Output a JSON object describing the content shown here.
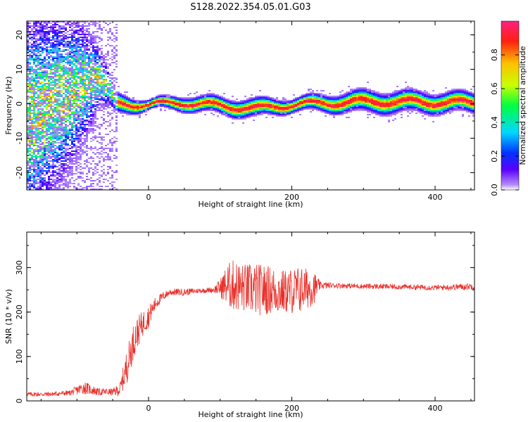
{
  "title": "S128.2022.354.05.01.G03",
  "chart_data": [
    {
      "type": "heatmap",
      "xlabel": "Height of straight line (km)",
      "ylabel": "Frequency (Hz)",
      "xlim": [
        -170,
        455
      ],
      "ylim": [
        -25,
        24
      ],
      "xticks": [
        0,
        200,
        400
      ],
      "yticks": [
        -20,
        -10,
        0,
        10,
        20
      ],
      "colorbar": {
        "label": "Normalized spectral amplitude",
        "range": [
          0,
          1
        ],
        "ticks": [
          "0.0",
          "0.2",
          "0.4",
          "0.6",
          "0.8"
        ]
      },
      "ridge": [
        {
          "x": -160,
          "freq": -3,
          "spread": 14
        },
        {
          "x": -130,
          "freq": 1,
          "spread": 12
        },
        {
          "x": -100,
          "freq": 5,
          "spread": 9
        },
        {
          "x": -70,
          "freq": 8,
          "spread": 4
        },
        {
          "x": -55,
          "freq": 4,
          "spread": 2
        },
        {
          "x": -45,
          "freq": 0,
          "spread": 1.2
        },
        {
          "x": 0,
          "freq": 0,
          "spread": 0.6
        },
        {
          "x": 50,
          "freq": 0.5,
          "spread": 0.9
        },
        {
          "x": 100,
          "freq": -0.5,
          "spread": 1.0
        },
        {
          "x": 150,
          "freq": -1.2,
          "spread": 1.1
        },
        {
          "x": 200,
          "freq": 0,
          "spread": 0.8
        },
        {
          "x": 300,
          "freq": 0.8,
          "spread": 1.3
        },
        {
          "x": 455,
          "freq": 0.5,
          "spread": 1.2
        }
      ]
    },
    {
      "type": "line",
      "xlabel": "Height of straight line (km)",
      "ylabel": "SNR (10 * v/v)",
      "xlim": [
        -170,
        455
      ],
      "ylim": [
        0,
        380
      ],
      "xticks": [
        0,
        200,
        400
      ],
      "yticks": [
        0,
        100,
        200,
        300
      ],
      "series": [
        {
          "color": "#e8302a",
          "x": [
            -170,
            -140,
            -110,
            -90,
            -70,
            -50,
            -40,
            -30,
            -20,
            -10,
            0,
            10,
            20,
            30,
            50,
            70,
            90,
            100,
            110,
            120,
            130,
            150,
            170,
            190,
            210,
            230,
            240,
            260,
            300,
            350,
            400,
            455
          ],
          "y": [
            15,
            15,
            18,
            30,
            20,
            20,
            25,
            80,
            140,
            170,
            190,
            220,
            235,
            245,
            245,
            248,
            250,
            255,
            260,
            260,
            255,
            250,
            250,
            245,
            250,
            255,
            260,
            260,
            258,
            257,
            255,
            258
          ],
          "noise": [
            5,
            5,
            6,
            15,
            8,
            8,
            15,
            40,
            40,
            30,
            25,
            15,
            10,
            8,
            8,
            6,
            6,
            20,
            50,
            60,
            55,
            60,
            55,
            50,
            55,
            40,
            8,
            6,
            6,
            6,
            6,
            8
          ]
        }
      ]
    }
  ]
}
